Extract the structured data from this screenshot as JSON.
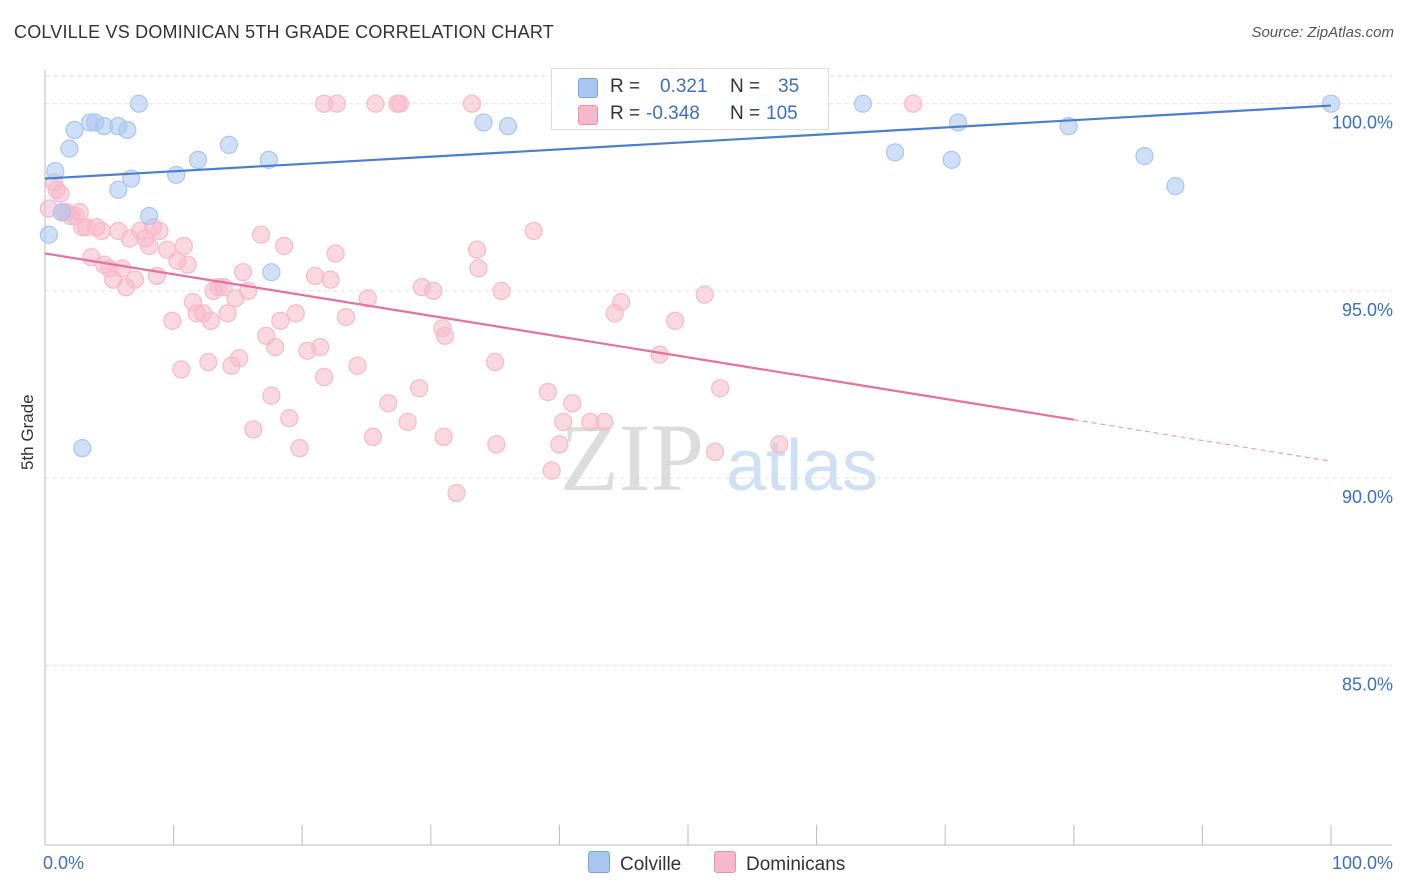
{
  "header": {
    "title": "COLVILLE VS DOMINICAN 5TH GRADE CORRELATION CHART",
    "source": "Source: ZipAtlas.com"
  },
  "watermark": {
    "zip": "ZIP",
    "atlas": "atlas"
  },
  "legend": {
    "rows": [
      {
        "r_label": "R =",
        "r_value": "0.321",
        "n_label": "N =",
        "n_value": "35",
        "color": "#a8c6ef"
      },
      {
        "r_label": "R =",
        "r_value": "-0.348",
        "n_label": "N =",
        "n_value": "105",
        "color": "#f6b8cb"
      }
    ],
    "bottom": [
      {
        "label": "Colville",
        "color": "#a8c6ef"
      },
      {
        "label": "Dominicans",
        "color": "#f6b8cb"
      }
    ]
  },
  "chart_data": {
    "type": "scatter",
    "xlabel": "",
    "ylabel": "5th Grade",
    "xlim": [
      0,
      100
    ],
    "ylim": [
      80.2,
      100.9
    ],
    "x_tick_labels": [
      "0.0%",
      "100.0%"
    ],
    "y_ticks": [
      100,
      95,
      90,
      85
    ],
    "y_tick_labels": [
      "100.0%",
      "95.0%",
      "90.0%",
      "85.0%"
    ],
    "grid": true,
    "series": [
      {
        "name": "Colville",
        "color": "#4a7fd0",
        "fill": "#a8c6ef",
        "trend": {
          "x0": 0,
          "y0": 98.0,
          "x1": 100,
          "y1": 99.95,
          "dashed_from": null
        },
        "points": [
          [
            0.3,
            96.5
          ],
          [
            0.8,
            98.2
          ],
          [
            1.3,
            97.1
          ],
          [
            1.9,
            98.8
          ],
          [
            2.3,
            99.3
          ],
          [
            3.5,
            99.5
          ],
          [
            3.9,
            99.5
          ],
          [
            4.6,
            99.4
          ],
          [
            5.7,
            99.4
          ],
          [
            5.7,
            97.7
          ],
          [
            6.4,
            99.3
          ],
          [
            6.7,
            98.0
          ],
          [
            7.3,
            100.0
          ],
          [
            8.1,
            97.0
          ],
          [
            10.2,
            98.1
          ],
          [
            11.9,
            98.5
          ],
          [
            14.3,
            98.9
          ],
          [
            17.4,
            98.5
          ],
          [
            17.6,
            95.5
          ],
          [
            2.9,
            90.8
          ],
          [
            34.1,
            99.5
          ],
          [
            36.0,
            99.4
          ],
          [
            40.5,
            100.0
          ],
          [
            42.0,
            100.0
          ],
          [
            48.0,
            100.0
          ],
          [
            53.3,
            100.0
          ],
          [
            56.0,
            100.0
          ],
          [
            63.6,
            100.0
          ],
          [
            66.1,
            98.7
          ],
          [
            71.0,
            99.5
          ],
          [
            79.6,
            99.4
          ],
          [
            85.5,
            98.6
          ],
          [
            87.9,
            97.8
          ],
          [
            70.5,
            98.5
          ],
          [
            100.0,
            100.0
          ]
        ]
      },
      {
        "name": "Dominicans",
        "color": "#e8709a",
        "fill": "#f6b8cb",
        "trend": {
          "x0": 0,
          "y0": 96.0,
          "x1": 100,
          "y1": 90.45,
          "dashed_from": 80
        },
        "points": [
          [
            0.3,
            97.2
          ],
          [
            0.7,
            97.9
          ],
          [
            0.9,
            97.7
          ],
          [
            1.2,
            97.6
          ],
          [
            1.5,
            97.1
          ],
          [
            1.7,
            97.1
          ],
          [
            2.0,
            97.0
          ],
          [
            2.4,
            97.0
          ],
          [
            2.7,
            97.1
          ],
          [
            2.9,
            96.7
          ],
          [
            3.2,
            96.7
          ],
          [
            3.6,
            95.9
          ],
          [
            4.0,
            96.7
          ],
          [
            4.4,
            96.6
          ],
          [
            4.6,
            95.7
          ],
          [
            5.0,
            95.6
          ],
          [
            5.3,
            95.3
          ],
          [
            5.7,
            96.6
          ],
          [
            6.0,
            95.6
          ],
          [
            6.3,
            95.1
          ],
          [
            6.6,
            96.4
          ],
          [
            7.0,
            95.3
          ],
          [
            7.4,
            96.6
          ],
          [
            7.8,
            96.4
          ],
          [
            8.1,
            96.2
          ],
          [
            8.4,
            96.7
          ],
          [
            8.7,
            95.4
          ],
          [
            8.9,
            96.6
          ],
          [
            9.5,
            96.1
          ],
          [
            9.9,
            94.2
          ],
          [
            10.3,
            95.8
          ],
          [
            10.6,
            92.9
          ],
          [
            10.8,
            96.2
          ],
          [
            11.1,
            95.7
          ],
          [
            11.5,
            94.7
          ],
          [
            11.8,
            94.4
          ],
          [
            12.3,
            94.4
          ],
          [
            12.7,
            93.1
          ],
          [
            12.9,
            94.2
          ],
          [
            13.1,
            95.0
          ],
          [
            13.5,
            95.1
          ],
          [
            13.9,
            95.1
          ],
          [
            14.2,
            94.4
          ],
          [
            14.5,
            93.0
          ],
          [
            14.8,
            94.8
          ],
          [
            15.1,
            93.2
          ],
          [
            15.4,
            95.5
          ],
          [
            15.8,
            95.0
          ],
          [
            16.2,
            91.3
          ],
          [
            16.8,
            96.5
          ],
          [
            17.2,
            93.8
          ],
          [
            17.6,
            92.2
          ],
          [
            17.9,
            93.5
          ],
          [
            18.3,
            94.2
          ],
          [
            18.6,
            96.2
          ],
          [
            19.0,
            91.6
          ],
          [
            19.5,
            94.4
          ],
          [
            19.8,
            90.8
          ],
          [
            20.4,
            93.4
          ],
          [
            21.0,
            95.4
          ],
          [
            21.4,
            93.5
          ],
          [
            21.7,
            92.7
          ],
          [
            22.2,
            95.3
          ],
          [
            22.6,
            96.0
          ],
          [
            23.4,
            94.3
          ],
          [
            24.3,
            93.0
          ],
          [
            25.1,
            94.8
          ],
          [
            25.5,
            91.1
          ],
          [
            26.7,
            92.0
          ],
          [
            27.4,
            100.0
          ],
          [
            28.2,
            91.5
          ],
          [
            29.1,
            92.4
          ],
          [
            29.3,
            95.1
          ],
          [
            30.2,
            95.0
          ],
          [
            30.9,
            94.0
          ],
          [
            31.1,
            93.8
          ],
          [
            31.0,
            91.1
          ],
          [
            32.0,
            89.6
          ],
          [
            33.2,
            100.0
          ],
          [
            33.6,
            96.1
          ],
          [
            33.7,
            95.6
          ],
          [
            35.0,
            93.1
          ],
          [
            35.1,
            90.9
          ],
          [
            35.5,
            95.0
          ],
          [
            38.0,
            96.6
          ],
          [
            39.1,
            92.3
          ],
          [
            39.4,
            90.2
          ],
          [
            40.0,
            90.9
          ],
          [
            40.3,
            91.5
          ],
          [
            41.0,
            92.0
          ],
          [
            42.4,
            91.5
          ],
          [
            43.5,
            91.5
          ],
          [
            44.3,
            94.4
          ],
          [
            44.8,
            94.7
          ],
          [
            47.8,
            93.3
          ],
          [
            49.0,
            94.2
          ],
          [
            51.3,
            94.9
          ],
          [
            52.1,
            90.7
          ],
          [
            52.5,
            92.4
          ],
          [
            57.1,
            90.9
          ],
          [
            21.7,
            100.0
          ],
          [
            22.7,
            100.0
          ],
          [
            25.7,
            100.0
          ],
          [
            27.6,
            100.0
          ],
          [
            67.5,
            100.0
          ]
        ]
      }
    ]
  }
}
